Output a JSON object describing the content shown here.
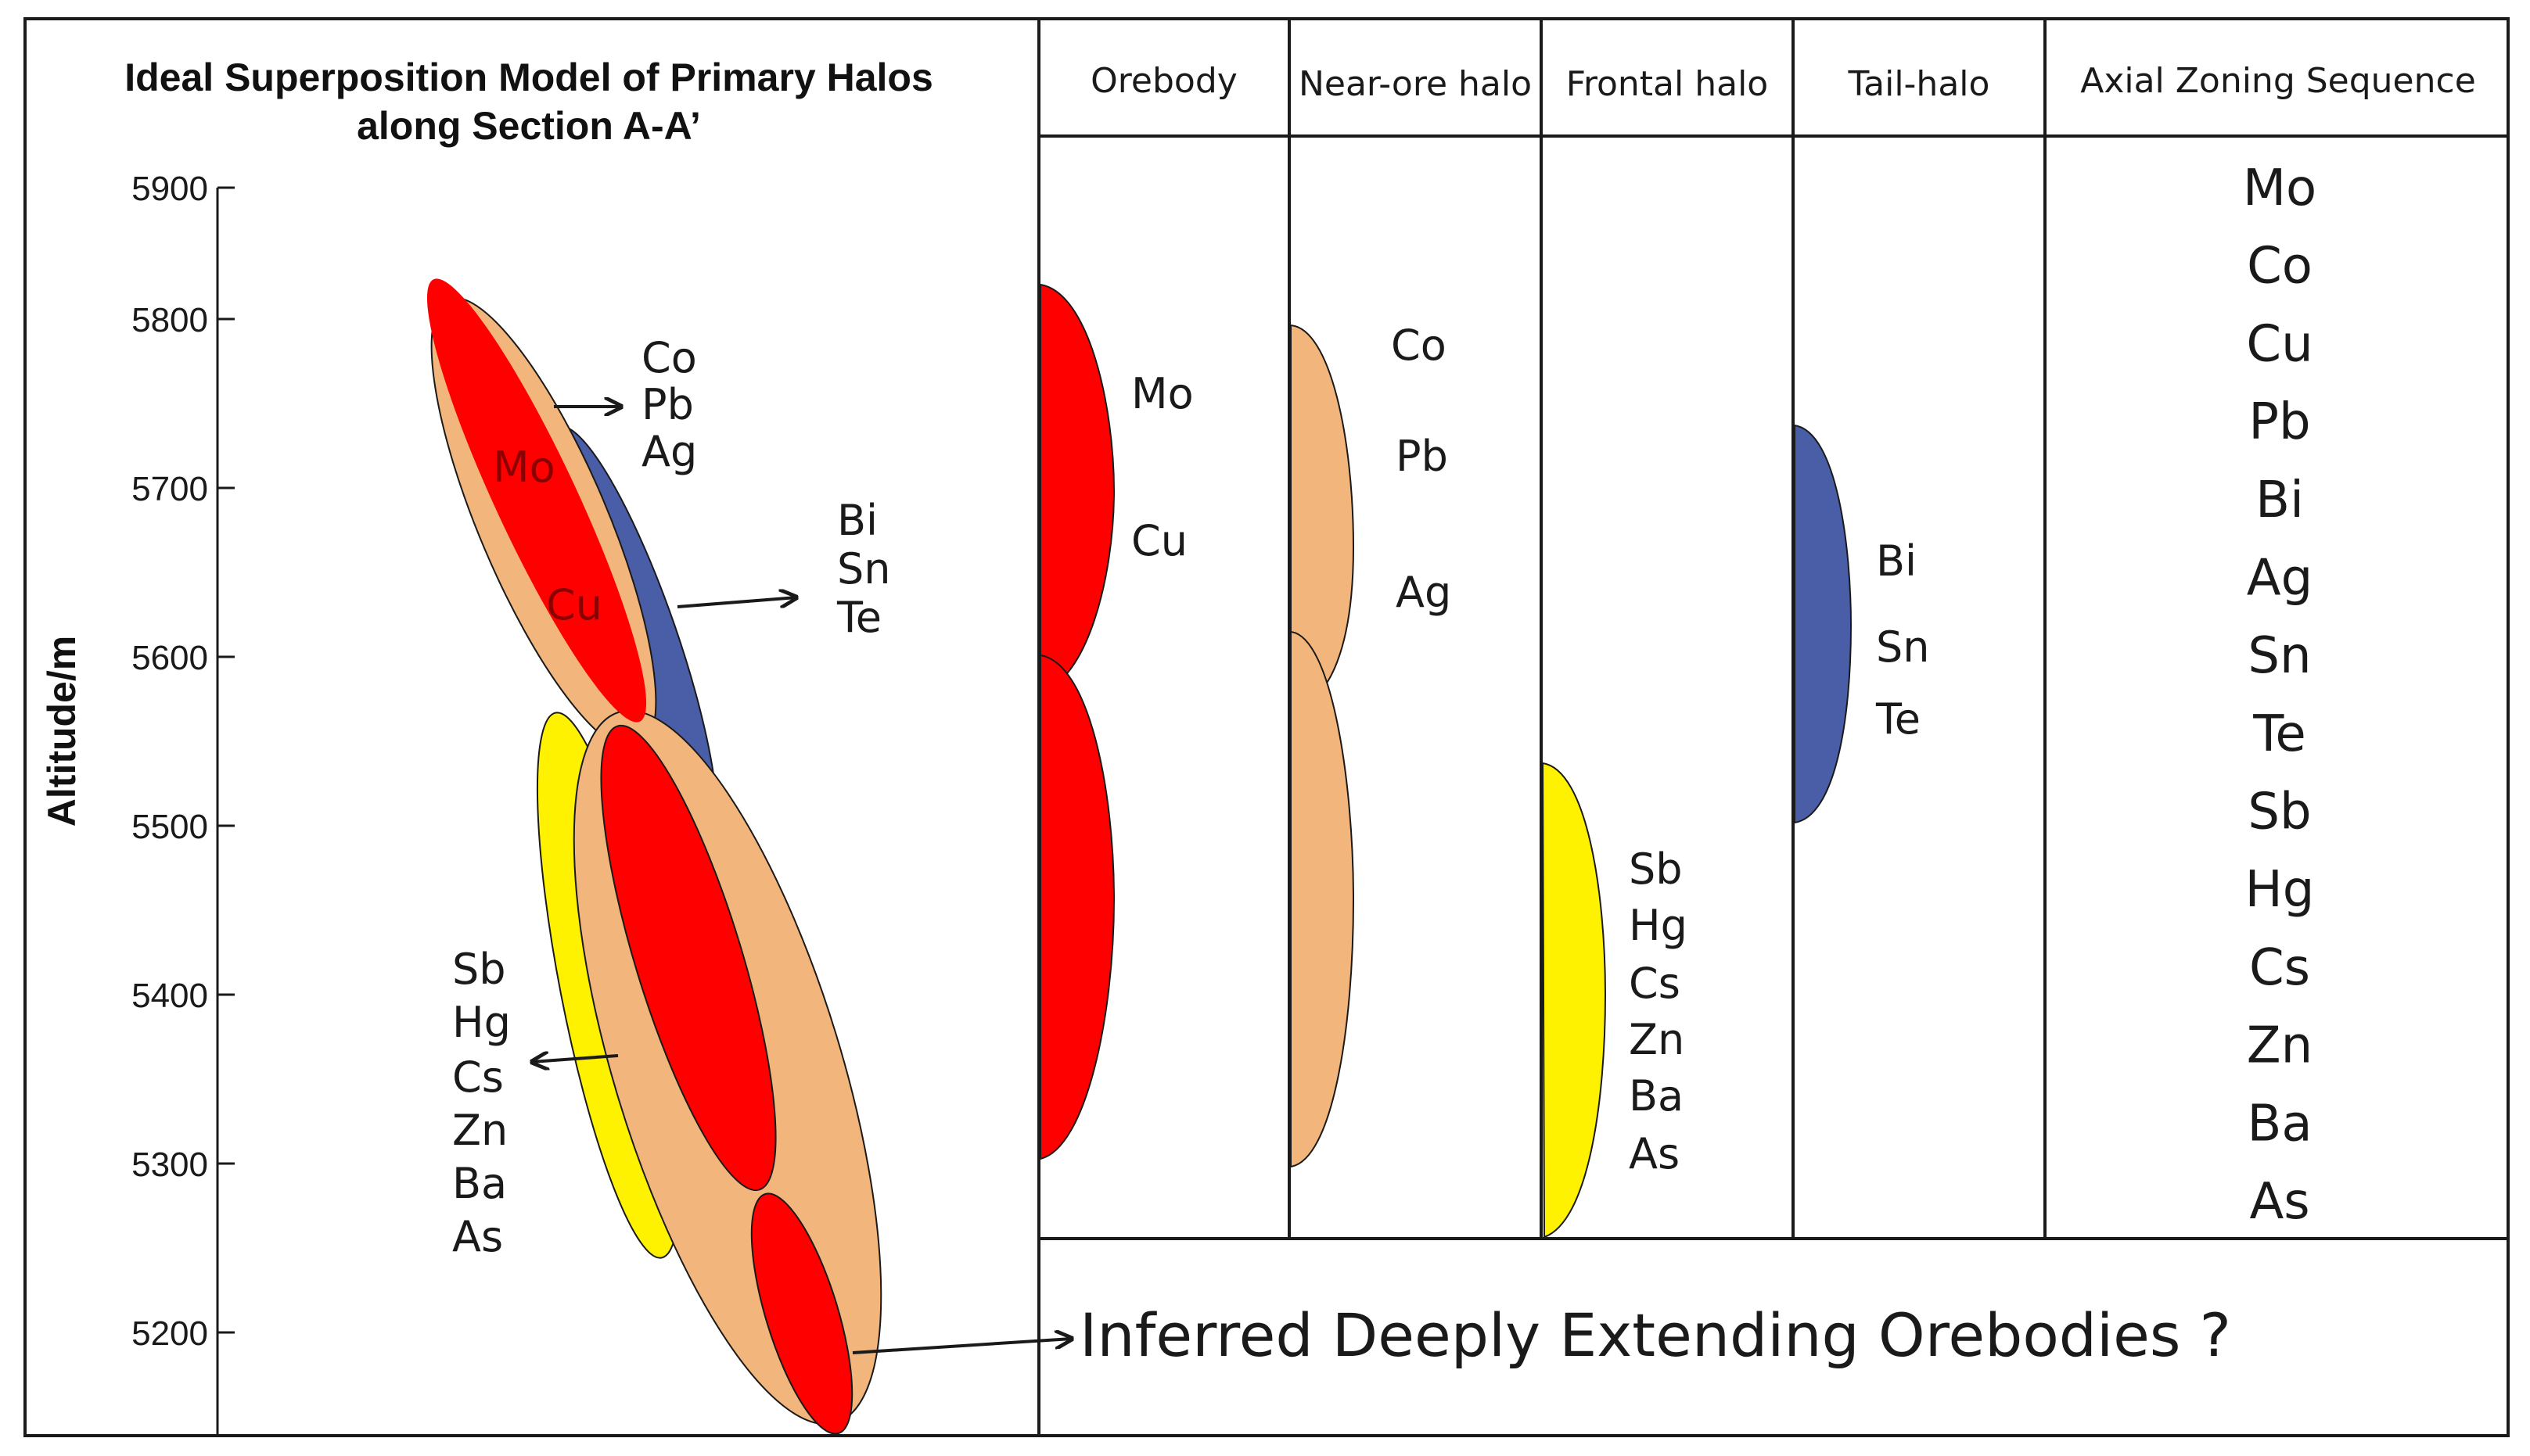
{
  "title": {
    "line1": "Ideal Superposition Model of Primary Halos",
    "line2": "along Section A-A’"
  },
  "columns": {
    "orebody": "Orebody",
    "near_ore": "Near-ore halo",
    "frontal": "Frontal halo",
    "tail": "Tail-halo",
    "axial": "Axial Zoning Sequence"
  },
  "axis": {
    "label": "Altitude/m",
    "ticks": [
      "5900",
      "5800",
      "5700",
      "5600",
      "5500",
      "5400",
      "5300",
      "5200"
    ]
  },
  "section_labels": {
    "near_ore_group": [
      "Co",
      "Pb",
      "Ag"
    ],
    "orebody_mo": "Mo",
    "orebody_cu": "Cu",
    "tail_group": [
      "Bi",
      "Sn",
      "Te"
    ],
    "frontal_group": [
      "Sb",
      "Hg",
      "Cs",
      "Zn",
      "Ba",
      "As"
    ]
  },
  "orebody_col": [
    "Mo",
    "Cu"
  ],
  "near_ore_col": [
    "Co",
    "Pb",
    "Ag"
  ],
  "tail_col": [
    "Bi",
    "Sn",
    "Te"
  ],
  "frontal_col": [
    "Sb",
    "Hg",
    "Cs",
    "Zn",
    "Ba",
    "As"
  ],
  "axial_sequence": [
    "Mo",
    "Co",
    "Cu",
    "Pb",
    "Bi",
    "Ag",
    "Sn",
    "Te",
    "Sb",
    "Hg",
    "Cs",
    "Zn",
    "Ba",
    "As"
  ],
  "inferred": "Inferred Deeply Extending Orebodies ?",
  "colors": {
    "orebody": "#ff0000",
    "near_ore": "#f2b67c",
    "tail": "#4a5ea8",
    "frontal": "#fff200",
    "line": "#1a1a1a"
  }
}
